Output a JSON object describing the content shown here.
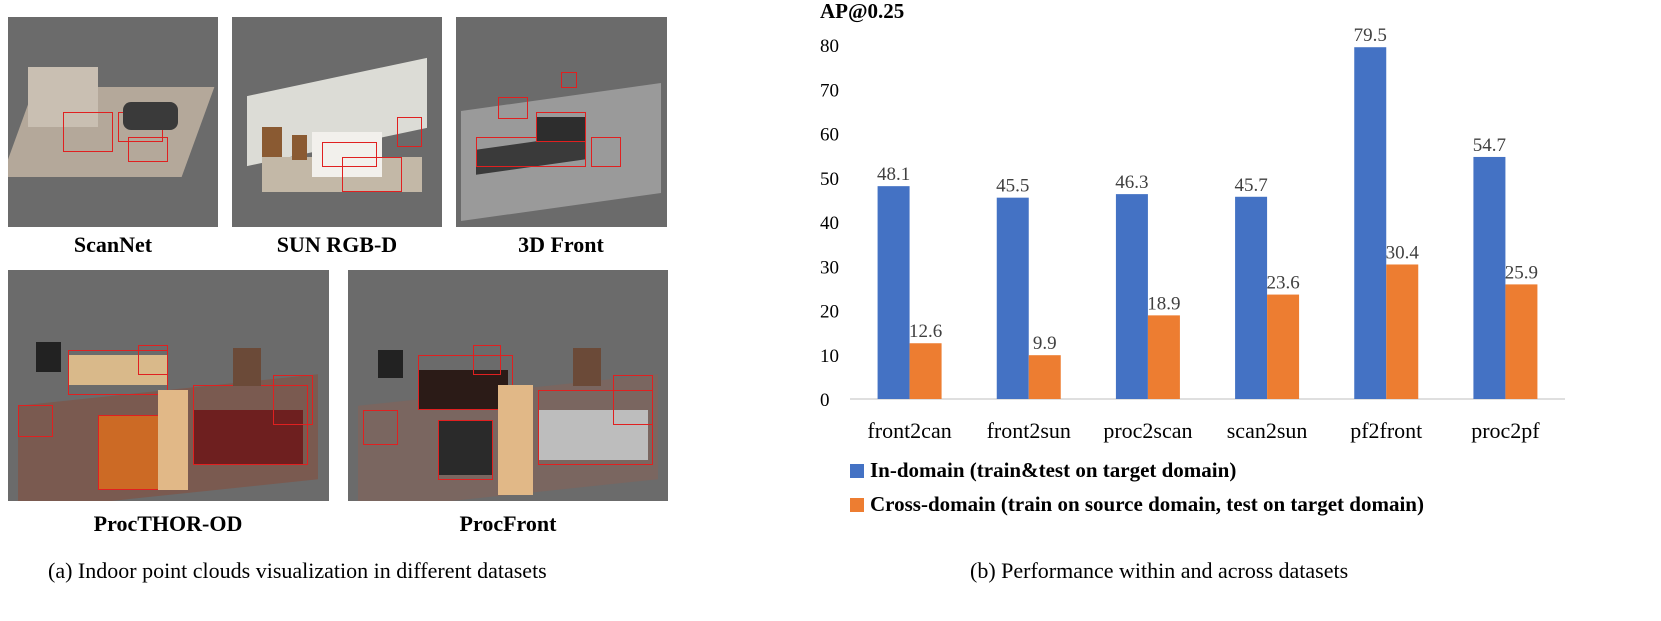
{
  "left_figure": {
    "panels": [
      {
        "label": "ScanNet"
      },
      {
        "label": "SUN RGB-D"
      },
      {
        "label": "3D Front"
      },
      {
        "label": "ProcTHOR-OD"
      },
      {
        "label": "ProcFront"
      }
    ],
    "caption": "(a)  Indoor point clouds visualization in different datasets"
  },
  "right_figure": {
    "caption": "(b)  Performance within and across datasets"
  },
  "chart_data": {
    "type": "bar",
    "ylabel": "AP@0.25",
    "ylim": [
      0,
      80
    ],
    "yticks": [
      0,
      10,
      20,
      30,
      40,
      50,
      60,
      70,
      80
    ],
    "categories": [
      "front2can",
      "front2sun",
      "proc2scan",
      "scan2sun",
      "pf2front",
      "proc2pf"
    ],
    "series": [
      {
        "name": "In-domain (train&test on target domain)",
        "color": "#4472c4",
        "values": [
          48.1,
          45.5,
          46.3,
          45.7,
          79.5,
          54.7
        ]
      },
      {
        "name": "Cross-domain (train on source domain, test on target domain)",
        "color": "#ed7d31",
        "values": [
          12.6,
          9.9,
          18.9,
          23.6,
          30.4,
          25.9
        ]
      }
    ],
    "legend_position": "bottom",
    "grid": false
  }
}
